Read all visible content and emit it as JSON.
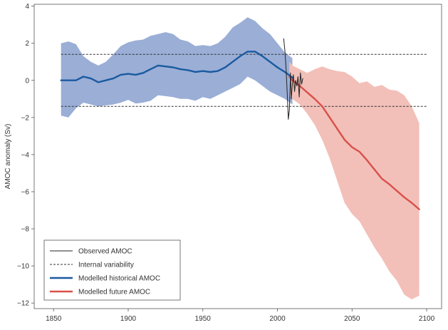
{
  "chart_data": {
    "type": "line",
    "title": "",
    "xlabel": "",
    "ylabel": "AMOC anomaly (Sv)",
    "xlim": [
      1837,
      2110
    ],
    "ylim": [
      -12.3,
      4.1
    ],
    "x_ticks": [
      1850,
      1900,
      1950,
      2000,
      2050,
      2100
    ],
    "y_ticks": [
      4,
      2,
      0,
      -2,
      -4,
      -6,
      -8,
      -10,
      -12
    ],
    "reference_lines": [
      {
        "name": "Internal variability",
        "style": "dashed",
        "y": 1.4,
        "x_range": [
          1855,
          2100
        ]
      },
      {
        "name": "Internal variability",
        "style": "dashed",
        "y": -1.4,
        "x_range": [
          1855,
          2100
        ]
      }
    ],
    "legend": {
      "position": "bottom-left",
      "entries": [
        {
          "label": "Observed AMOC",
          "style": "thin-line",
          "color": "#222222"
        },
        {
          "label": "Internal variability",
          "style": "dashed",
          "color": "#333333"
        },
        {
          "label": "Modelled historical AMOC",
          "style": "thick-line",
          "color": "#1a5aa0"
        },
        {
          "label": "Modelled future AMOC",
          "style": "thick-line",
          "color": "#d9504a"
        }
      ]
    },
    "series": [
      {
        "name": "Modelled historical AMOC",
        "color": "#1a5aa0",
        "band_color": "#9aaed6",
        "x": [
          1855,
          1860,
          1865,
          1870,
          1875,
          1880,
          1885,
          1890,
          1895,
          1900,
          1905,
          1910,
          1915,
          1920,
          1925,
          1930,
          1935,
          1940,
          1945,
          1950,
          1955,
          1960,
          1965,
          1970,
          1975,
          1980,
          1985,
          1990,
          1995,
          2000,
          2005,
          2010
        ],
        "values": [
          0.0,
          0.0,
          0.0,
          0.2,
          0.1,
          -0.1,
          0.0,
          0.1,
          0.3,
          0.35,
          0.3,
          0.4,
          0.6,
          0.8,
          0.75,
          0.7,
          0.6,
          0.55,
          0.45,
          0.5,
          0.45,
          0.5,
          0.7,
          1.0,
          1.3,
          1.55,
          1.55,
          1.3,
          1.0,
          0.7,
          0.45,
          0.15
        ],
        "upper": [
          2.0,
          2.1,
          1.95,
          1.3,
          1.0,
          0.8,
          1.0,
          1.4,
          1.85,
          2.05,
          2.15,
          2.2,
          2.4,
          2.5,
          2.6,
          2.5,
          2.2,
          2.1,
          1.85,
          1.9,
          1.85,
          2.0,
          2.35,
          2.85,
          3.1,
          3.4,
          3.2,
          2.8,
          2.5,
          2.0,
          1.5,
          1.2
        ],
        "lower": [
          -1.9,
          -2.0,
          -1.5,
          -1.2,
          -1.3,
          -1.4,
          -1.35,
          -1.3,
          -1.2,
          -1.05,
          -1.25,
          -1.2,
          -1.1,
          -0.8,
          -0.85,
          -0.9,
          -1.0,
          -1.0,
          -1.1,
          -0.9,
          -1.0,
          -0.8,
          -0.6,
          -0.4,
          -0.2,
          0.2,
          0.0,
          -0.3,
          -0.6,
          -0.8,
          -1.0,
          -1.3
        ]
      },
      {
        "name": "Modelled future AMOC",
        "color": "#d9504a",
        "band_color": "#f2c0b9",
        "x": [
          2008,
          2010,
          2015,
          2020,
          2025,
          2030,
          2035,
          2040,
          2045,
          2050,
          2055,
          2060,
          2065,
          2070,
          2075,
          2080,
          2085,
          2090,
          2095
        ],
        "values": [
          0.2,
          0.0,
          -0.3,
          -0.65,
          -1.0,
          -1.4,
          -2.0,
          -2.6,
          -3.2,
          -3.6,
          -3.85,
          -4.3,
          -4.8,
          -5.3,
          -5.6,
          -5.95,
          -6.3,
          -6.6,
          -6.95
        ],
        "upper": [
          1.0,
          0.8,
          0.6,
          0.4,
          0.6,
          0.75,
          0.6,
          0.5,
          0.45,
          0.2,
          -0.15,
          -0.05,
          -0.35,
          -0.25,
          -0.5,
          -0.55,
          -0.8,
          -1.4,
          -2.3
        ],
        "lower": [
          -0.8,
          -1.0,
          -1.3,
          -1.8,
          -2.4,
          -3.2,
          -4.2,
          -5.4,
          -6.6,
          -7.2,
          -7.6,
          -8.3,
          -9.0,
          -9.6,
          -10.3,
          -10.8,
          -11.55,
          -11.8,
          -11.6
        ]
      },
      {
        "name": "Observed AMOC",
        "color": "#222222",
        "x": [
          2004.2,
          2005.0,
          2005.8,
          2006.6,
          2007.3,
          2008.0,
          2008.7,
          2009.3,
          2010.0,
          2010.7,
          2011.5,
          2012.2,
          2013.0,
          2013.8,
          2014.6,
          2015.4,
          2016.2,
          2017.0
        ],
        "values": [
          2.25,
          1.6,
          0.6,
          -0.8,
          -2.1,
          -1.6,
          0.4,
          -1.0,
          -0.2,
          0.3,
          -0.6,
          0.0,
          -0.3,
          0.2,
          -0.9,
          0.4,
          -0.2,
          0.1
        ]
      }
    ]
  }
}
